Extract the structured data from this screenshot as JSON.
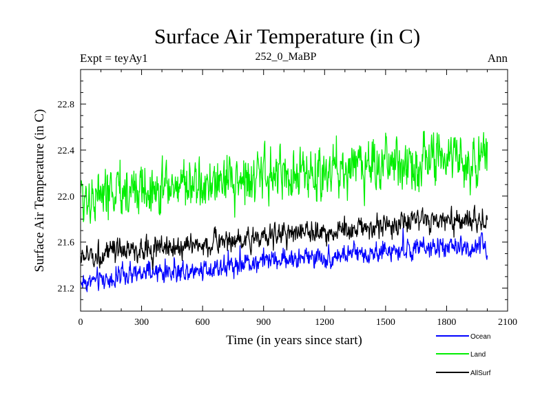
{
  "chart_data": {
    "type": "line",
    "title": "Surface Air Temperature (in C)",
    "subtitle_left": "Expt = teyAy1",
    "subtitle_center": "252_0_MaBP",
    "subtitle_right": "Ann",
    "xlabel": "Time (in years since start)",
    "ylabel": "Surface Air Temperature (in C)",
    "xlim": [
      0,
      2100
    ],
    "ylim": [
      21.0,
      23.1
    ],
    "x_ticks": [
      0,
      300,
      600,
      900,
      1200,
      1500,
      1800,
      2100
    ],
    "x_tick_labels": [
      "0",
      "300",
      "600",
      "900",
      "1200",
      "1500",
      "1800",
      "2100"
    ],
    "y_ticks": [
      21.2,
      21.6,
      22.0,
      22.4,
      22.8
    ],
    "y_tick_labels": [
      "21.2",
      "21.6",
      "22.0",
      "22.4",
      "22.8"
    ],
    "x_range": [
      0,
      2000
    ],
    "series": [
      {
        "name": "Ocean",
        "color": "#0000ff",
        "trend": [
          [
            0,
            21.25
          ],
          [
            300,
            21.32
          ],
          [
            600,
            21.37
          ],
          [
            900,
            21.44
          ],
          [
            1200,
            21.47
          ],
          [
            1500,
            21.52
          ],
          [
            1800,
            21.55
          ],
          [
            2000,
            21.56
          ]
        ],
        "noise_amplitude": 0.09
      },
      {
        "name": "Land",
        "color": "#00ee00",
        "trend": [
          [
            0,
            22.0
          ],
          [
            300,
            22.06
          ],
          [
            600,
            22.1
          ],
          [
            900,
            22.17
          ],
          [
            1200,
            22.22
          ],
          [
            1500,
            22.28
          ],
          [
            1800,
            22.32
          ],
          [
            2000,
            22.33
          ]
        ],
        "noise_amplitude": 0.22
      },
      {
        "name": "AllSurf",
        "color": "#000000",
        "trend": [
          [
            0,
            21.47
          ],
          [
            300,
            21.53
          ],
          [
            600,
            21.58
          ],
          [
            900,
            21.65
          ],
          [
            1200,
            21.69
          ],
          [
            1500,
            21.75
          ],
          [
            1800,
            21.78
          ],
          [
            2000,
            21.79
          ]
        ],
        "noise_amplitude": 0.1
      }
    ]
  }
}
